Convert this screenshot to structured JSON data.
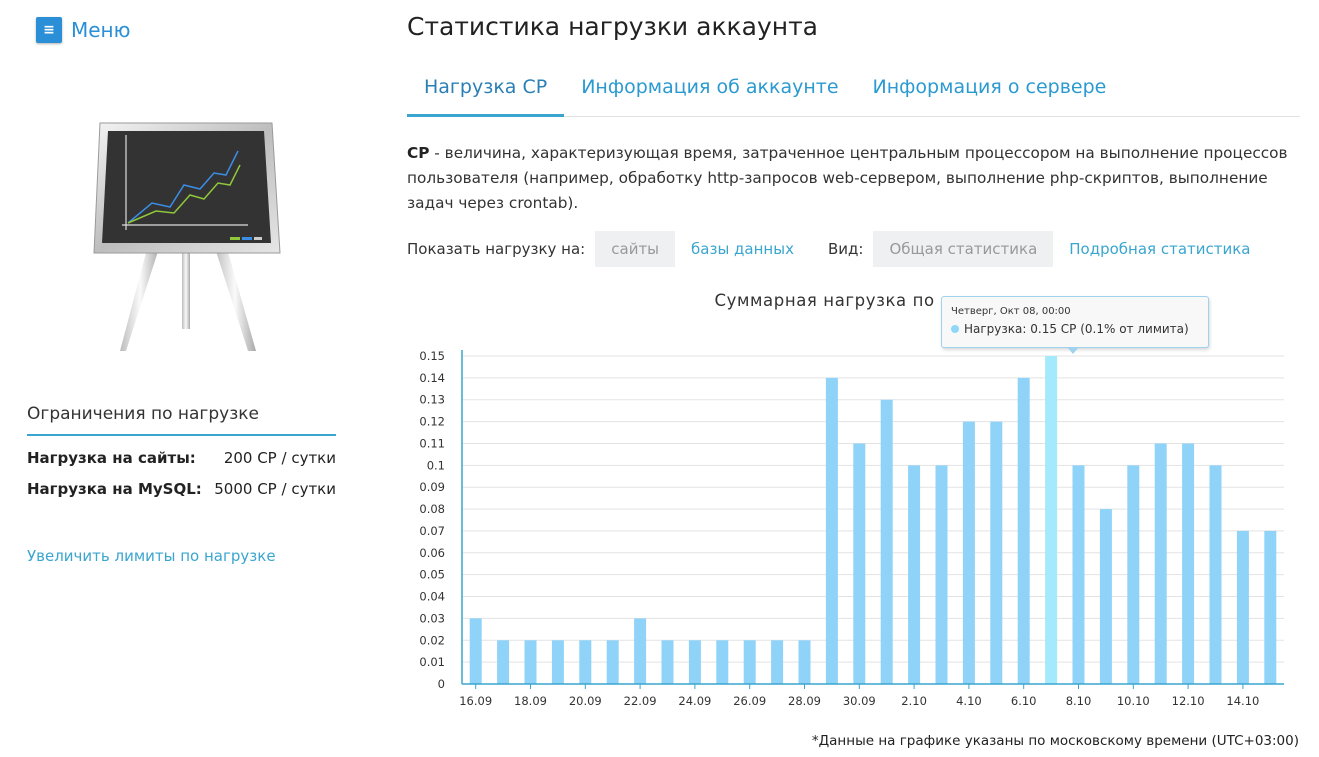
{
  "menu": {
    "icon": "hamburger-icon",
    "label": "Меню"
  },
  "title": "Статистика нагрузки аккаунта",
  "tabs": [
    {
      "label": "Нагрузка CP",
      "active": true
    },
    {
      "label": "Информация об аккаунте",
      "active": false
    },
    {
      "label": "Информация о сервере",
      "active": false
    }
  ],
  "description": {
    "term": "CP",
    "text": " - величина, характеризующая время, затраченное центральным процессором на выполнение процессов пользователя (например, обработку http-запросов web-сервером, выполнение php-скриптов, выполнение задач через crontab)."
  },
  "filters": {
    "show_label": "Показать нагрузку на:",
    "show_options": [
      {
        "label": "сайты",
        "selected": true
      },
      {
        "label": "базы данных",
        "selected": false
      }
    ],
    "view_label": "Вид:",
    "view_options": [
      {
        "label": "Общая статистика",
        "selected": true
      },
      {
        "label": "Подробная статистика",
        "selected": false
      }
    ]
  },
  "limits": {
    "title": "Ограничения по нагрузке",
    "rows": [
      {
        "label": "Нагрузка на сайты:",
        "value": "200 CP / сутки"
      },
      {
        "label": "Нагрузка на MySQL:",
        "value": "5000 CP / сутки"
      }
    ],
    "increase_link": "Увеличить лимиты по нагрузке"
  },
  "tooltip": {
    "date": "Четверг, Окт 08, 00:00",
    "label": "Нагрузка:",
    "value": "0.15 CP (0.1% от лимита)"
  },
  "footnote": "*Данные на графике указаны по московскому времени (UTC+03:00)",
  "colors": {
    "bar": "#8fd3f9",
    "bar_highlight": "#a5e9fd",
    "accent": "#3aa5cf",
    "link": "#2a9ad0"
  },
  "chart_data": {
    "type": "bar",
    "title": "Суммарная нагрузка по дням",
    "categories": [
      "16.09",
      "17.09",
      "18.09",
      "19.09",
      "20.09",
      "21.09",
      "22.09",
      "23.09",
      "24.09",
      "25.09",
      "26.09",
      "27.09",
      "28.09",
      "29.09",
      "30.09",
      "1.10",
      "2.10",
      "3.10",
      "4.10",
      "5.10",
      "6.10",
      "7.10",
      "8.10",
      "9.10",
      "10.10",
      "11.10",
      "12.10",
      "13.10",
      "14.10",
      "15.10"
    ],
    "tick_labels": [
      "16.09",
      "18.09",
      "20.09",
      "22.09",
      "24.09",
      "26.09",
      "28.09",
      "30.09",
      "2.10",
      "4.10",
      "6.10",
      "8.10",
      "10.10",
      "12.10",
      "14.10"
    ],
    "values": [
      0.03,
      0.02,
      0.02,
      0.02,
      0.02,
      0.02,
      0.03,
      0.02,
      0.02,
      0.02,
      0.02,
      0.02,
      0.02,
      0.14,
      0.11,
      0.13,
      0.1,
      0.1,
      0.12,
      0.12,
      0.14,
      0.15,
      0.1,
      0.08,
      0.1,
      0.11,
      0.11,
      0.1,
      0.07,
      0.07
    ],
    "highlight_index": 21,
    "yticks": [
      "0",
      "0.01",
      "0.02",
      "0.03",
      "0.04",
      "0.05",
      "0.06",
      "0.07",
      "0.08",
      "0.09",
      "0.1",
      "0.11",
      "0.12",
      "0.13",
      "0.14",
      "0.15"
    ],
    "ylim": [
      0,
      0.15
    ],
    "grid": true,
    "legend": false
  }
}
